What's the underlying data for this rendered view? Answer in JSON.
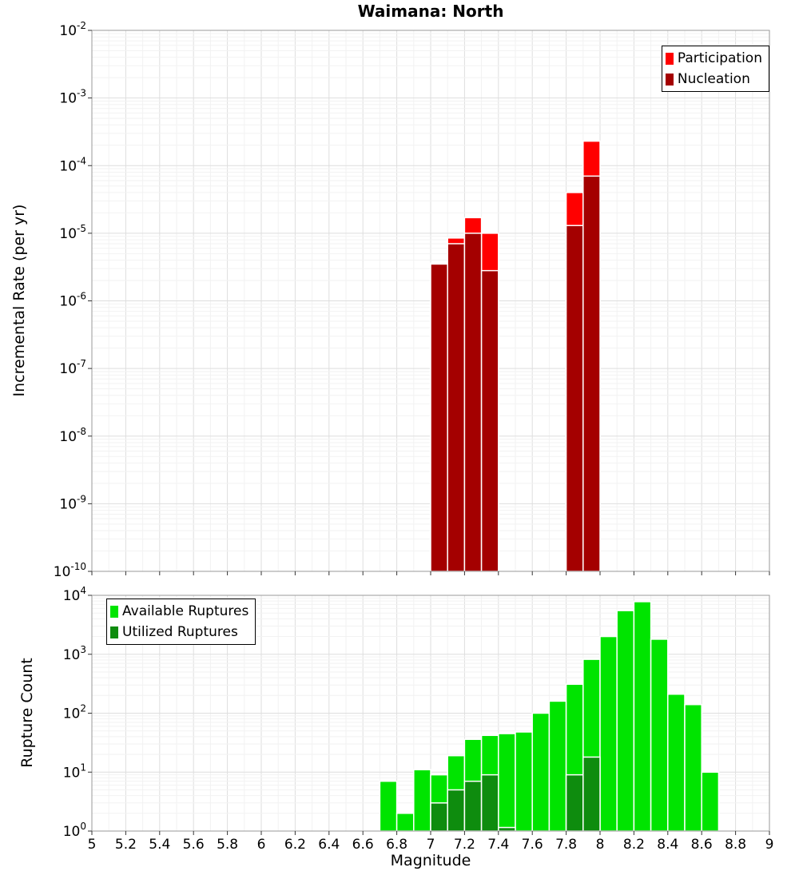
{
  "chart_data": [
    {
      "id": "rate",
      "type": "bar",
      "title": "Waimana: North",
      "ylabel": "Incremental Rate (per yr)",
      "xlabel": "",
      "yscale": "log",
      "y_exp_range": [
        -10,
        -2
      ],
      "xlim": [
        5,
        9
      ],
      "xtick_step": 0.2,
      "bin_width": 0.1,
      "grid": true,
      "legend_position": "top-right",
      "legend": [
        {
          "label": "Participation",
          "color": "#ff0000"
        },
        {
          "label": "Nucleation",
          "color": "#a40000"
        }
      ],
      "series": [
        {
          "name": "Participation",
          "color": "#ff0000",
          "bins": [
            7.0,
            7.1,
            7.2,
            7.3,
            7.8,
            7.9
          ],
          "values": [
            3.6e-06,
            8.5e-06,
            1.7e-05,
            1e-05,
            4e-05,
            0.00023
          ]
        },
        {
          "name": "Nucleation",
          "color": "#a40000",
          "bins": [
            7.0,
            7.1,
            7.2,
            7.3,
            7.8,
            7.9
          ],
          "values": [
            3.5e-06,
            7e-06,
            1e-05,
            2.8e-06,
            1.3e-05,
            7e-05
          ]
        }
      ]
    },
    {
      "id": "count",
      "type": "bar",
      "title": "",
      "ylabel": "Rupture Count",
      "xlabel": "Magnitude",
      "yscale": "log",
      "y_exp_range": [
        0,
        4
      ],
      "xlim": [
        5,
        9
      ],
      "xtick_step": 0.2,
      "bin_width": 0.1,
      "grid": true,
      "legend_position": "top-left",
      "legend": [
        {
          "label": "Available Ruptures",
          "color": "#00e400"
        },
        {
          "label": "Utilized Ruptures",
          "color": "#0e8c0e"
        }
      ],
      "series": [
        {
          "name": "Available Ruptures",
          "color": "#00e400",
          "bins": [
            6.7,
            6.8,
            6.9,
            7.0,
            7.1,
            7.2,
            7.3,
            7.4,
            7.5,
            7.6,
            7.7,
            7.8,
            7.9,
            8.0,
            8.1,
            8.2,
            8.3,
            8.4,
            8.5,
            8.6
          ],
          "values": [
            7,
            2,
            11,
            9,
            19,
            36,
            42,
            45,
            48,
            100,
            160,
            310,
            820,
            2000,
            5500,
            7800,
            1800,
            210,
            140,
            10
          ]
        },
        {
          "name": "Utilized Ruptures",
          "color": "#0e8c0e",
          "bins": [
            7.0,
            7.1,
            7.2,
            7.3,
            7.4,
            7.8,
            7.9
          ],
          "values": [
            3,
            5,
            7,
            9,
            1.15,
            9,
            18
          ]
        }
      ]
    }
  ]
}
